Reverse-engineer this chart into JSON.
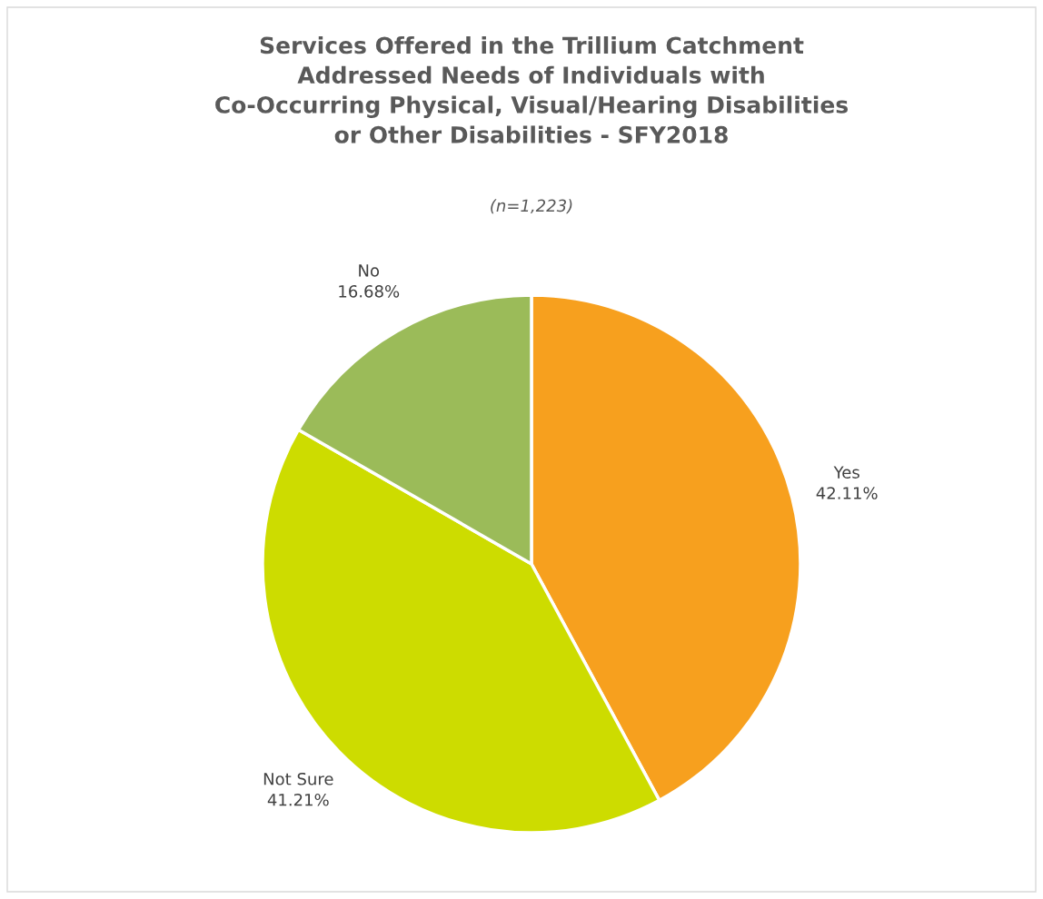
{
  "chart_data": {
    "type": "pie",
    "title": "Services Offered in the Trillium Catchment\nAddressed Needs of Individuals with\nCo-Occurring Physical, Visual/Hearing Disabilities\nor Other Disabilities - SFY2018",
    "subtitle": "(n=1,223)",
    "categories": [
      "Yes",
      "Not Sure",
      "No"
    ],
    "values": [
      42.11,
      41.21,
      16.68
    ],
    "value_labels": [
      "42.11%",
      "41.21%",
      "16.68%"
    ],
    "colors": [
      "#f7a01e",
      "#cddc00",
      "#9bbb59"
    ],
    "legend": false
  }
}
